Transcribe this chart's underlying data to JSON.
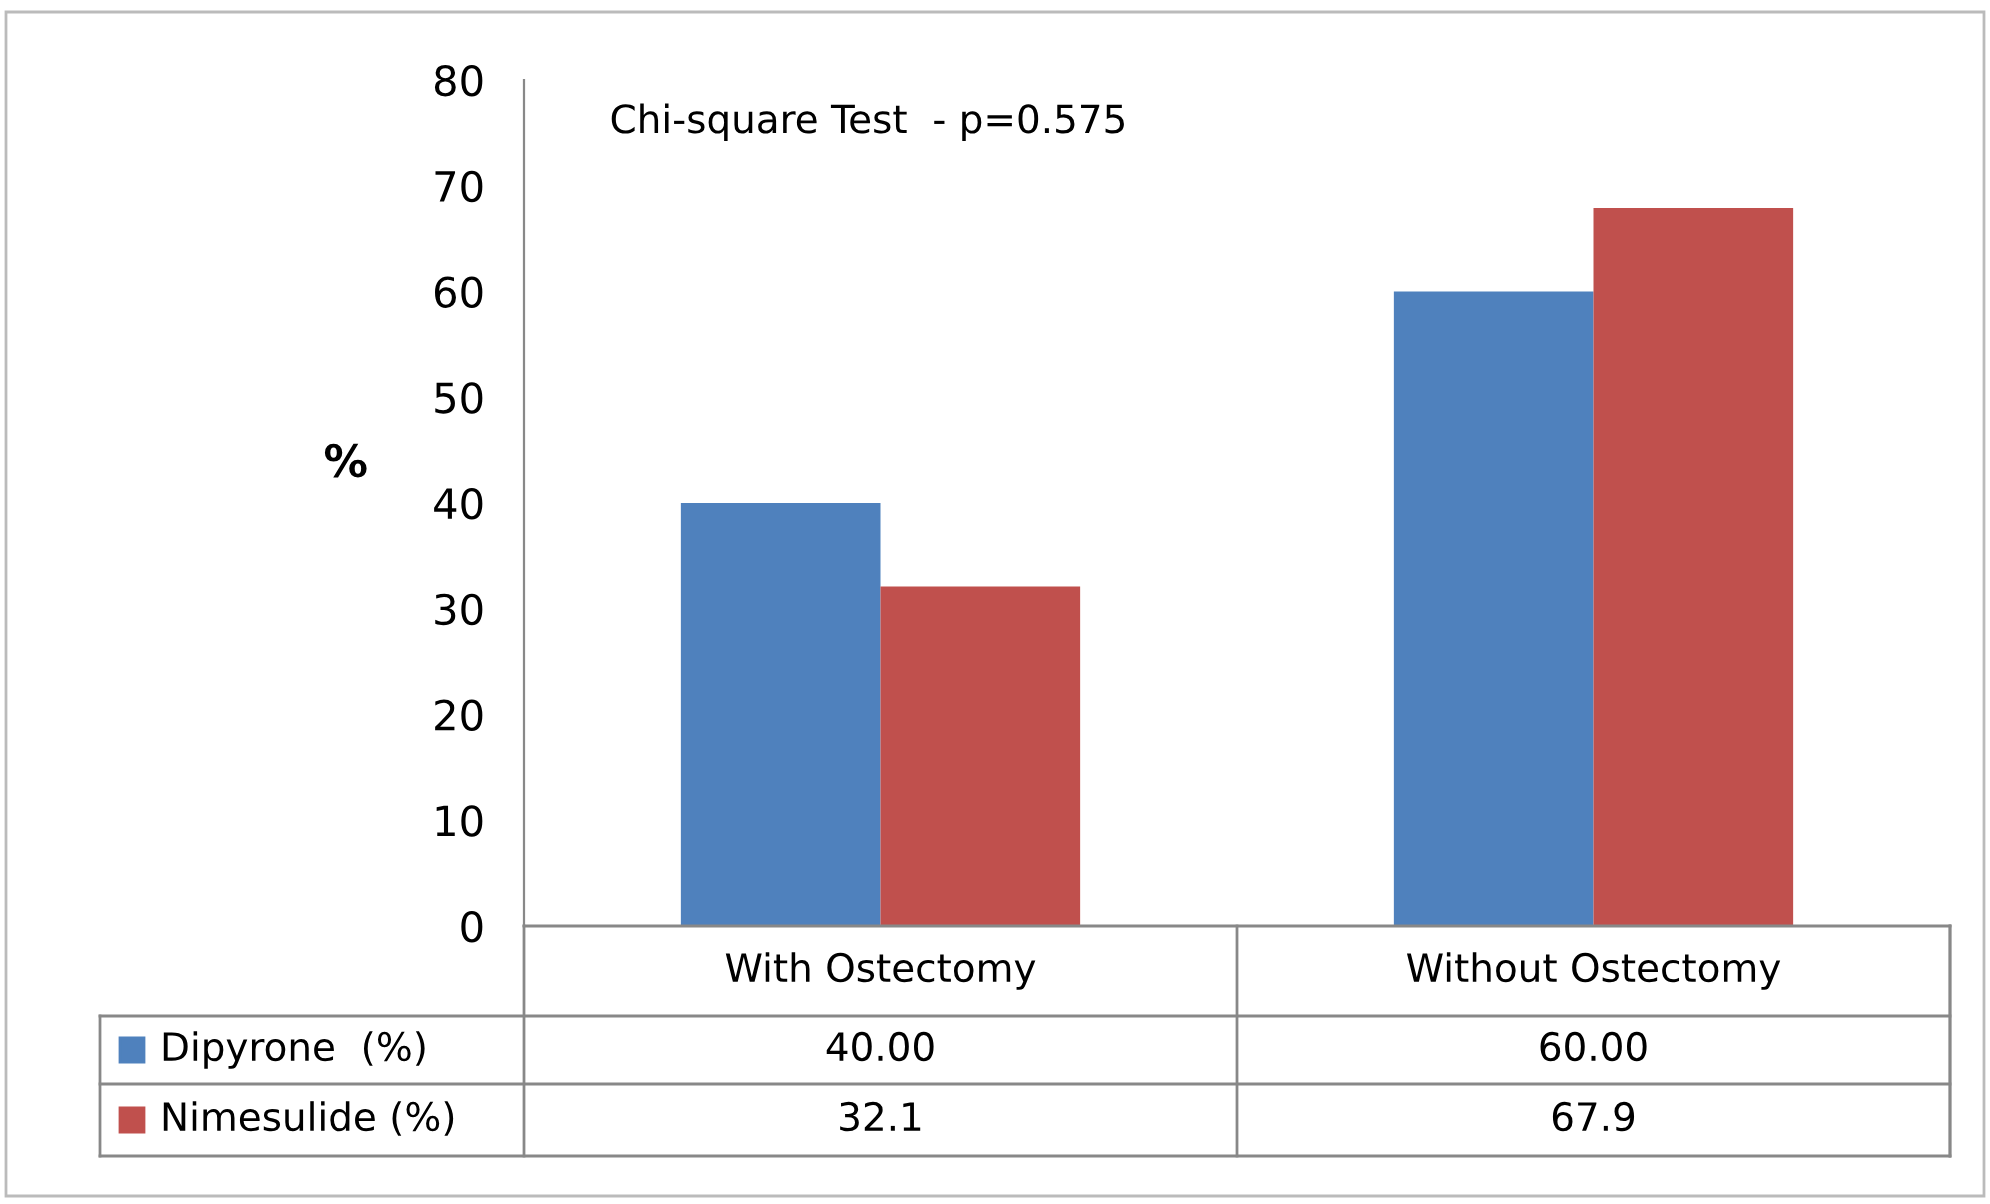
{
  "chart_data": {
    "type": "bar",
    "ylabel": "%",
    "categories": [
      "With Ostectomy",
      "Without Ostectomy"
    ],
    "series": [
      {
        "name": "Dipyrone  (%)",
        "color": "#4f81bd",
        "values": [
          40.0,
          60.0
        ],
        "value_labels": [
          "40.00",
          "60.00"
        ]
      },
      {
        "name": "Nimesulide (%)",
        "color": "#c0504d",
        "values": [
          32.1,
          67.9
        ],
        "value_labels": [
          "32.1",
          "67.9"
        ]
      }
    ],
    "ylim": [
      0,
      80
    ],
    "yticks": [
      0,
      10,
      20,
      30,
      40,
      50,
      60,
      70,
      80
    ],
    "grid": false,
    "legend": "bottom",
    "annotations": [
      "Chi-square Test  - p=0.575"
    ]
  }
}
